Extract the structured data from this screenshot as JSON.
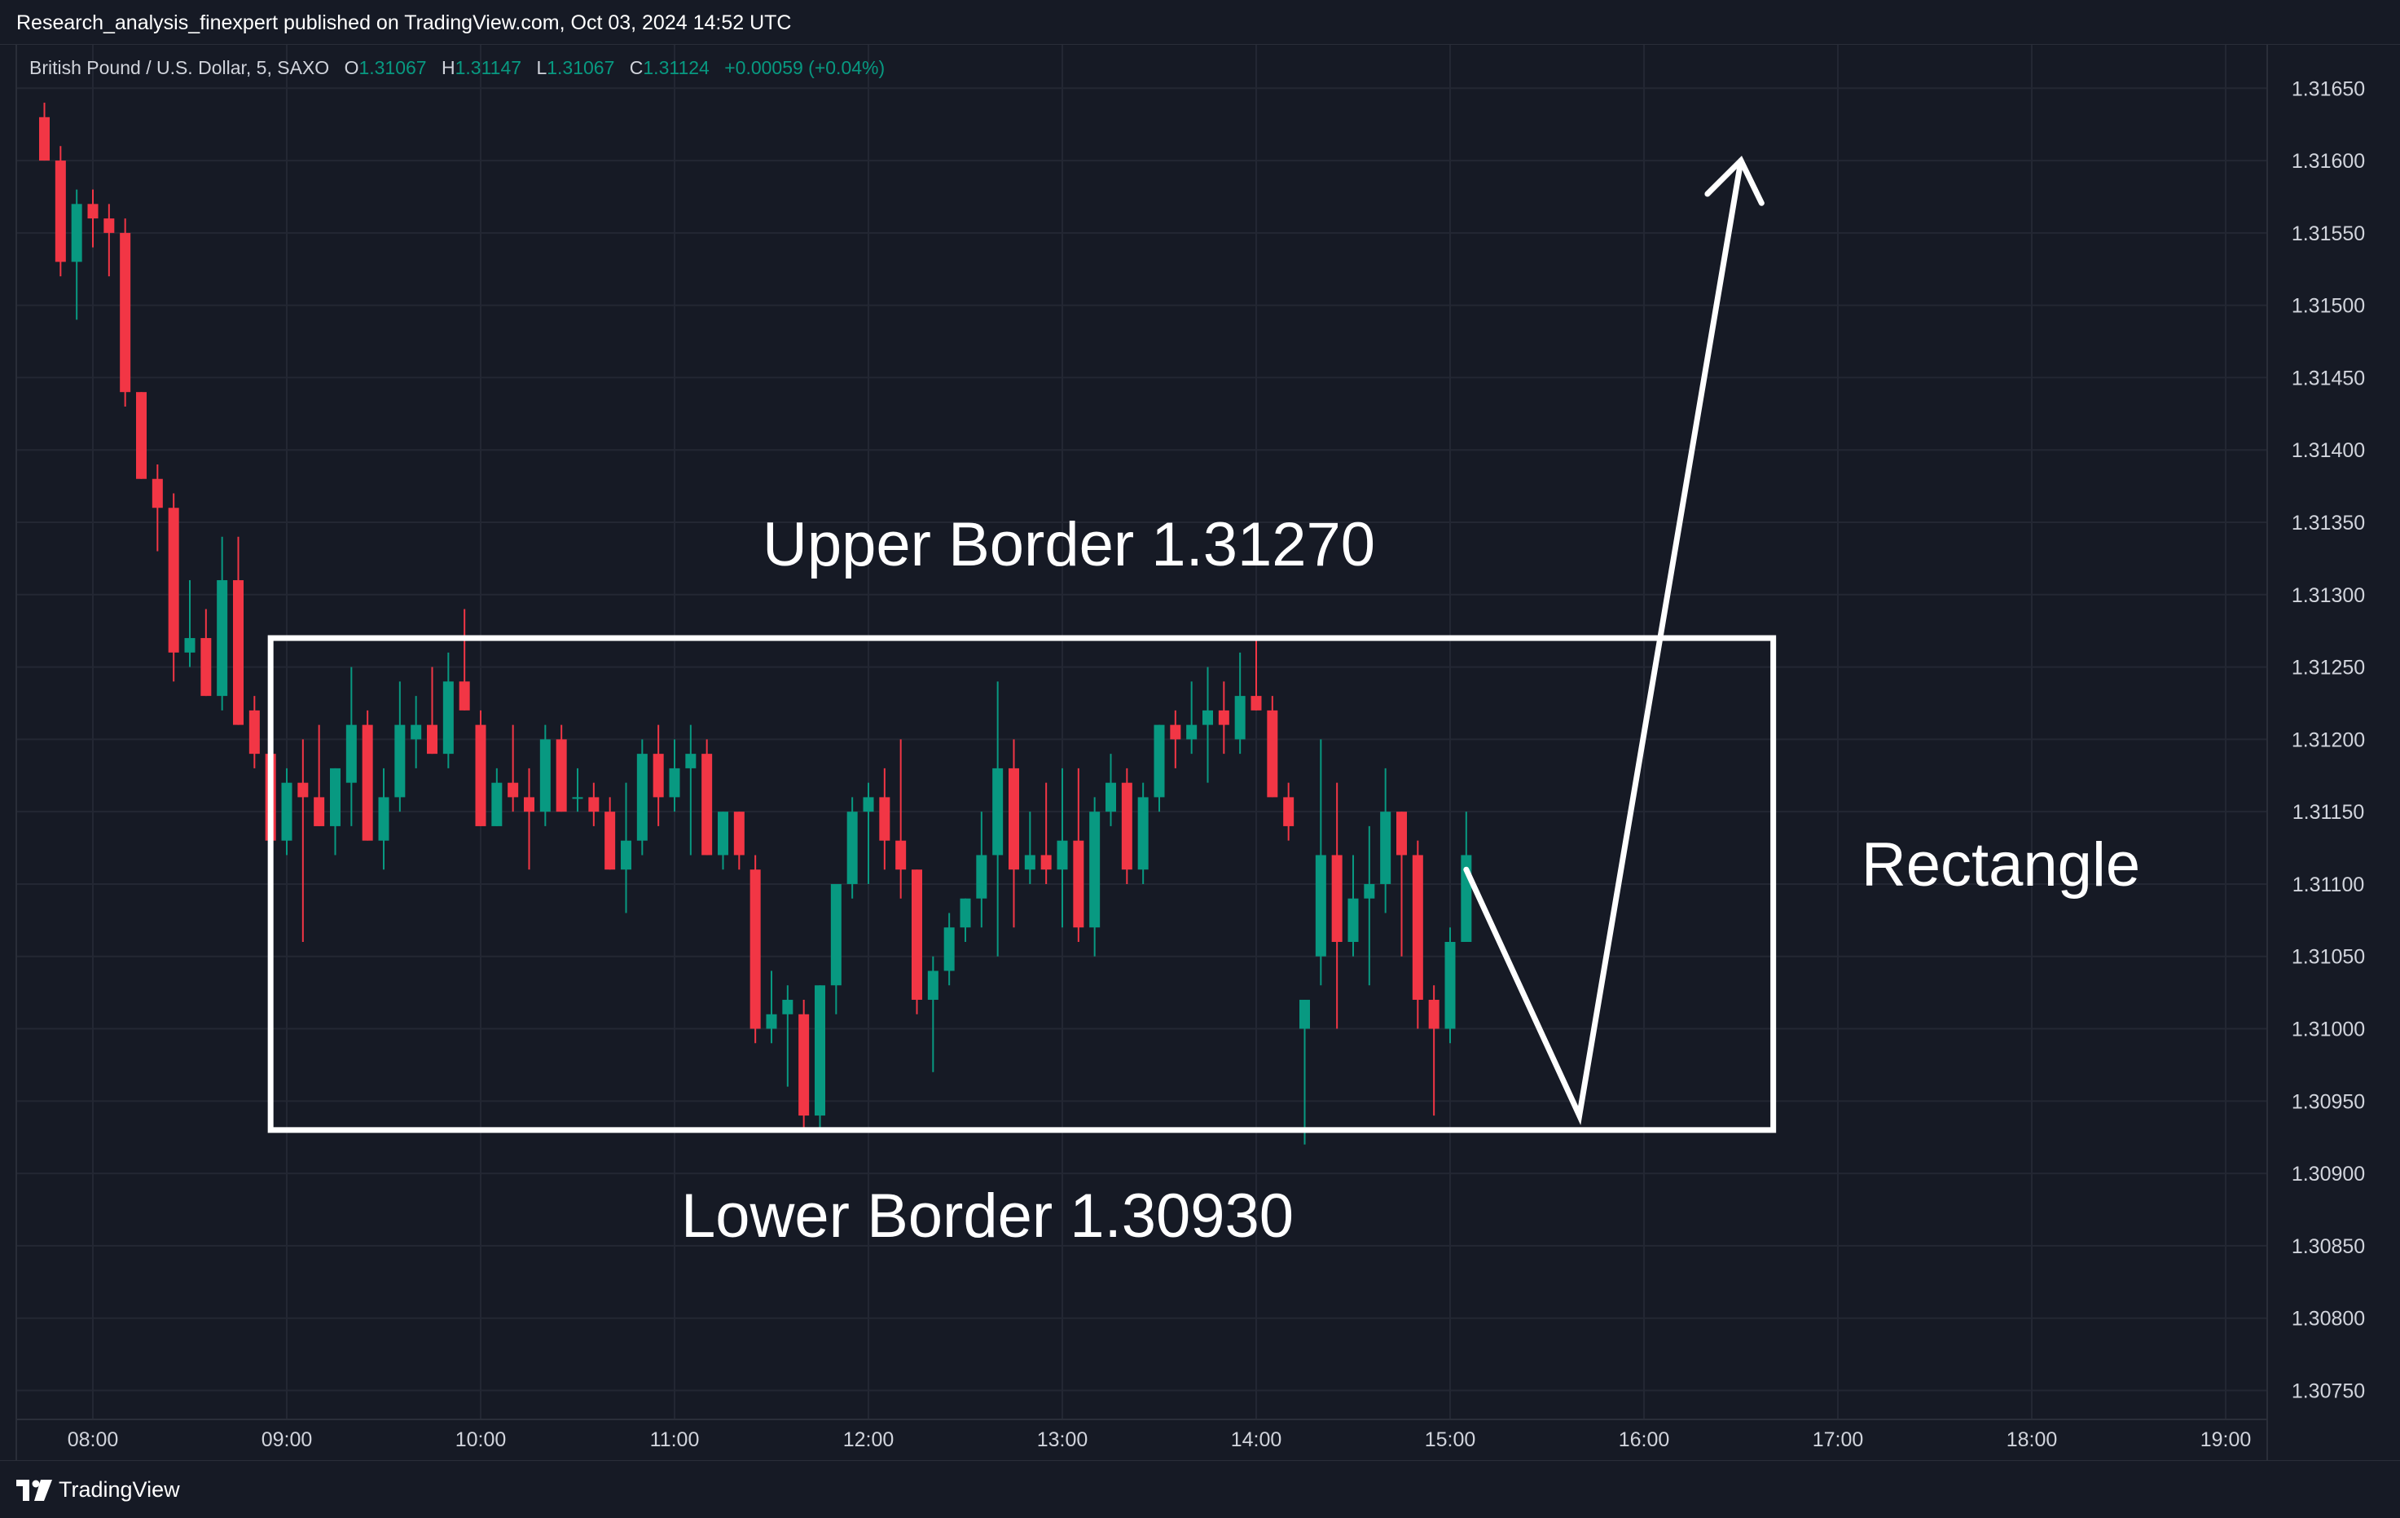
{
  "header": {
    "published_text": "Research_analysis_finexpert published on TradingView.com, Oct 03, 2024 14:52 UTC"
  },
  "legend": {
    "symbol": "British Pound / U.S. Dollar, 5, SAXO",
    "o_label": "O",
    "o_value": "1.31067",
    "h_label": "H",
    "h_value": "1.31147",
    "l_label": "L",
    "l_value": "1.31067",
    "c_label": "C",
    "c_value": "1.31124",
    "change": "+0.00059 (+0.04%)"
  },
  "footer": {
    "brand": "TradingView"
  },
  "colors": {
    "background": "#161a25",
    "grid": "#232733",
    "up": "#089981",
    "down": "#f23645",
    "axis_text": "#d1d4dc",
    "annotation": "#ffffff"
  },
  "chart_data": {
    "type": "candlestick",
    "symbol": "British Pound / U.S. Dollar",
    "interval": "5",
    "exchange": "SAXO",
    "x_axis": {
      "ticks": [
        "08:00",
        "09:00",
        "10:00",
        "11:00",
        "12:00",
        "13:00",
        "14:00",
        "15:00",
        "16:00",
        "17:00",
        "18:00",
        "19:00"
      ]
    },
    "y_axis": {
      "position": "right",
      "range": [
        1.3073,
        1.3168
      ],
      "ticks": [
        "1.30750",
        "1.30800",
        "1.30850",
        "1.30900",
        "1.30950",
        "1.31000",
        "1.31050",
        "1.31100",
        "1.31150",
        "1.31200",
        "1.31250",
        "1.31300",
        "1.31350",
        "1.31400",
        "1.31450",
        "1.31500",
        "1.31550",
        "1.31600",
        "1.31650"
      ]
    },
    "grid": true,
    "candles": [
      {
        "t": "07:45",
        "o": 1.3163,
        "h": 1.3164,
        "l": 1.316,
        "c": 1.316
      },
      {
        "t": "07:50",
        "o": 1.316,
        "h": 1.3161,
        "l": 1.3152,
        "c": 1.3153
      },
      {
        "t": "07:55",
        "o": 1.3153,
        "h": 1.3158,
        "l": 1.3149,
        "c": 1.3157
      },
      {
        "t": "08:00",
        "o": 1.3157,
        "h": 1.3158,
        "l": 1.3154,
        "c": 1.3156
      },
      {
        "t": "08:05",
        "o": 1.3156,
        "h": 1.3157,
        "l": 1.3152,
        "c": 1.3155
      },
      {
        "t": "08:10",
        "o": 1.3155,
        "h": 1.3156,
        "l": 1.3143,
        "c": 1.3144
      },
      {
        "t": "08:15",
        "o": 1.3144,
        "h": 1.3144,
        "l": 1.3138,
        "c": 1.3138
      },
      {
        "t": "08:20",
        "o": 1.3138,
        "h": 1.3139,
        "l": 1.3133,
        "c": 1.3136
      },
      {
        "t": "08:25",
        "o": 1.3136,
        "h": 1.3137,
        "l": 1.3124,
        "c": 1.3126
      },
      {
        "t": "08:30",
        "o": 1.3126,
        "h": 1.3131,
        "l": 1.3125,
        "c": 1.3127
      },
      {
        "t": "08:35",
        "o": 1.3127,
        "h": 1.3129,
        "l": 1.3123,
        "c": 1.3123
      },
      {
        "t": "08:40",
        "o": 1.3123,
        "h": 1.3134,
        "l": 1.3122,
        "c": 1.3131
      },
      {
        "t": "08:45",
        "o": 1.3131,
        "h": 1.3134,
        "l": 1.3121,
        "c": 1.3121
      },
      {
        "t": "08:50",
        "o": 1.3122,
        "h": 1.3123,
        "l": 1.3118,
        "c": 1.3119
      },
      {
        "t": "08:55",
        "o": 1.3119,
        "h": 1.3121,
        "l": 1.3111,
        "c": 1.3113
      },
      {
        "t": "09:00",
        "o": 1.3113,
        "h": 1.3118,
        "l": 1.3112,
        "c": 1.3117
      },
      {
        "t": "09:05",
        "o": 1.3117,
        "h": 1.312,
        "l": 1.3106,
        "c": 1.3116
      },
      {
        "t": "09:10",
        "o": 1.3116,
        "h": 1.3121,
        "l": 1.3114,
        "c": 1.3114
      },
      {
        "t": "09:15",
        "o": 1.3114,
        "h": 1.3118,
        "l": 1.3112,
        "c": 1.3118
      },
      {
        "t": "09:20",
        "o": 1.3117,
        "h": 1.3125,
        "l": 1.3114,
        "c": 1.3121
      },
      {
        "t": "09:25",
        "o": 1.3121,
        "h": 1.3122,
        "l": 1.3113,
        "c": 1.3113
      },
      {
        "t": "09:30",
        "o": 1.3113,
        "h": 1.3118,
        "l": 1.3111,
        "c": 1.3116
      },
      {
        "t": "09:35",
        "o": 1.3116,
        "h": 1.3124,
        "l": 1.3115,
        "c": 1.3121
      },
      {
        "t": "09:40",
        "o": 1.312,
        "h": 1.3123,
        "l": 1.3118,
        "c": 1.3121
      },
      {
        "t": "09:45",
        "o": 1.3121,
        "h": 1.3125,
        "l": 1.3119,
        "c": 1.3119
      },
      {
        "t": "09:50",
        "o": 1.3119,
        "h": 1.3126,
        "l": 1.3118,
        "c": 1.3124
      },
      {
        "t": "09:55",
        "o": 1.3124,
        "h": 1.3129,
        "l": 1.3122,
        "c": 1.3122
      },
      {
        "t": "10:00",
        "o": 1.3121,
        "h": 1.3122,
        "l": 1.3114,
        "c": 1.3114
      },
      {
        "t": "10:05",
        "o": 1.3114,
        "h": 1.3118,
        "l": 1.3114,
        "c": 1.3117
      },
      {
        "t": "10:10",
        "o": 1.3117,
        "h": 1.3121,
        "l": 1.3115,
        "c": 1.3116
      },
      {
        "t": "10:15",
        "o": 1.3116,
        "h": 1.3118,
        "l": 1.3111,
        "c": 1.3115
      },
      {
        "t": "10:20",
        "o": 1.3115,
        "h": 1.3121,
        "l": 1.3114,
        "c": 1.312
      },
      {
        "t": "10:25",
        "o": 1.312,
        "h": 1.3121,
        "l": 1.3115,
        "c": 1.3115
      },
      {
        "t": "10:30",
        "o": 1.3116,
        "h": 1.3118,
        "l": 1.3115,
        "c": 1.3116
      },
      {
        "t": "10:35",
        "o": 1.3116,
        "h": 1.3117,
        "l": 1.3114,
        "c": 1.3115
      },
      {
        "t": "10:40",
        "o": 1.3115,
        "h": 1.3116,
        "l": 1.3111,
        "c": 1.3111
      },
      {
        "t": "10:45",
        "o": 1.3111,
        "h": 1.3117,
        "l": 1.3108,
        "c": 1.3113
      },
      {
        "t": "10:50",
        "o": 1.3113,
        "h": 1.312,
        "l": 1.3112,
        "c": 1.3119
      },
      {
        "t": "10:55",
        "o": 1.3119,
        "h": 1.3121,
        "l": 1.3114,
        "c": 1.3116
      },
      {
        "t": "11:00",
        "o": 1.3116,
        "h": 1.312,
        "l": 1.3115,
        "c": 1.3118
      },
      {
        "t": "11:05",
        "o": 1.3118,
        "h": 1.3121,
        "l": 1.3112,
        "c": 1.3119
      },
      {
        "t": "11:10",
        "o": 1.3119,
        "h": 1.312,
        "l": 1.3112,
        "c": 1.3112
      },
      {
        "t": "11:15",
        "o": 1.3112,
        "h": 1.3115,
        "l": 1.3111,
        "c": 1.3115
      },
      {
        "t": "11:20",
        "o": 1.3115,
        "h": 1.3115,
        "l": 1.3111,
        "c": 1.3112
      },
      {
        "t": "11:25",
        "o": 1.3111,
        "h": 1.3112,
        "l": 1.3099,
        "c": 1.31
      },
      {
        "t": "11:30",
        "o": 1.31,
        "h": 1.3104,
        "l": 1.3099,
        "c": 1.3101
      },
      {
        "t": "11:35",
        "o": 1.3101,
        "h": 1.3103,
        "l": 1.3096,
        "c": 1.3102
      },
      {
        "t": "11:40",
        "o": 1.3101,
        "h": 1.3102,
        "l": 1.3093,
        "c": 1.3094
      },
      {
        "t": "11:45",
        "o": 1.3094,
        "h": 1.3103,
        "l": 1.3093,
        "c": 1.3103
      },
      {
        "t": "11:50",
        "o": 1.3103,
        "h": 1.311,
        "l": 1.3101,
        "c": 1.311
      },
      {
        "t": "11:55",
        "o": 1.311,
        "h": 1.3116,
        "l": 1.3109,
        "c": 1.3115
      },
      {
        "t": "12:00",
        "o": 1.3115,
        "h": 1.3117,
        "l": 1.311,
        "c": 1.3116
      },
      {
        "t": "12:05",
        "o": 1.3116,
        "h": 1.3118,
        "l": 1.3111,
        "c": 1.3113
      },
      {
        "t": "12:10",
        "o": 1.3113,
        "h": 1.312,
        "l": 1.3109,
        "c": 1.3111
      },
      {
        "t": "12:15",
        "o": 1.3111,
        "h": 1.3111,
        "l": 1.3101,
        "c": 1.3102
      },
      {
        "t": "12:20",
        "o": 1.3102,
        "h": 1.3105,
        "l": 1.3097,
        "c": 1.3104
      },
      {
        "t": "12:25",
        "o": 1.3104,
        "h": 1.3108,
        "l": 1.3103,
        "c": 1.3107
      },
      {
        "t": "12:30",
        "o": 1.3107,
        "h": 1.3109,
        "l": 1.3106,
        "c": 1.3109
      },
      {
        "t": "12:35",
        "o": 1.3109,
        "h": 1.3115,
        "l": 1.3107,
        "c": 1.3112
      },
      {
        "t": "12:40",
        "o": 1.3112,
        "h": 1.3124,
        "l": 1.3105,
        "c": 1.3118
      },
      {
        "t": "12:45",
        "o": 1.3118,
        "h": 1.312,
        "l": 1.3107,
        "c": 1.3111
      },
      {
        "t": "12:50",
        "o": 1.3111,
        "h": 1.3115,
        "l": 1.311,
        "c": 1.3112
      },
      {
        "t": "12:55",
        "o": 1.3112,
        "h": 1.3117,
        "l": 1.311,
        "c": 1.3111
      },
      {
        "t": "13:00",
        "o": 1.3111,
        "h": 1.3118,
        "l": 1.3107,
        "c": 1.3113
      },
      {
        "t": "13:05",
        "o": 1.3113,
        "h": 1.3118,
        "l": 1.3106,
        "c": 1.3107
      },
      {
        "t": "13:10",
        "o": 1.3107,
        "h": 1.3116,
        "l": 1.3105,
        "c": 1.3115
      },
      {
        "t": "13:15",
        "o": 1.3115,
        "h": 1.3119,
        "l": 1.3114,
        "c": 1.3117
      },
      {
        "t": "13:20",
        "o": 1.3117,
        "h": 1.3118,
        "l": 1.311,
        "c": 1.3111
      },
      {
        "t": "13:25",
        "o": 1.3111,
        "h": 1.3117,
        "l": 1.311,
        "c": 1.3116
      },
      {
        "t": "13:30",
        "o": 1.3116,
        "h": 1.3121,
        "l": 1.3115,
        "c": 1.3121
      },
      {
        "t": "13:35",
        "o": 1.3121,
        "h": 1.3122,
        "l": 1.3118,
        "c": 1.312
      },
      {
        "t": "13:40",
        "o": 1.312,
        "h": 1.3124,
        "l": 1.3119,
        "c": 1.3121
      },
      {
        "t": "13:45",
        "o": 1.3121,
        "h": 1.3125,
        "l": 1.3117,
        "c": 1.3122
      },
      {
        "t": "13:50",
        "o": 1.3122,
        "h": 1.3124,
        "l": 1.3119,
        "c": 1.3121
      },
      {
        "t": "13:55",
        "o": 1.312,
        "h": 1.3126,
        "l": 1.3119,
        "c": 1.3123
      },
      {
        "t": "14:00",
        "o": 1.3123,
        "h": 1.3127,
        "l": 1.3122,
        "c": 1.3122
      },
      {
        "t": "14:05",
        "o": 1.3122,
        "h": 1.3123,
        "l": 1.3116,
        "c": 1.3116
      },
      {
        "t": "14:10",
        "o": 1.3116,
        "h": 1.3117,
        "l": 1.3113,
        "c": 1.3114
      },
      {
        "t": "14:15",
        "o": 1.31,
        "h": 1.3102,
        "l": 1.3092,
        "c": 1.3102
      },
      {
        "t": "14:20",
        "o": 1.3105,
        "h": 1.312,
        "l": 1.3103,
        "c": 1.3112
      },
      {
        "t": "14:25",
        "o": 1.3112,
        "h": 1.3117,
        "l": 1.31,
        "c": 1.3106
      },
      {
        "t": "14:30",
        "o": 1.3106,
        "h": 1.3112,
        "l": 1.3105,
        "c": 1.3109
      },
      {
        "t": "14:35",
        "o": 1.3109,
        "h": 1.3114,
        "l": 1.3103,
        "c": 1.311
      },
      {
        "t": "14:40",
        "o": 1.311,
        "h": 1.3118,
        "l": 1.3108,
        "c": 1.3115
      },
      {
        "t": "14:45",
        "o": 1.3115,
        "h": 1.3115,
        "l": 1.3105,
        "c": 1.3112
      },
      {
        "t": "14:50",
        "o": 1.3112,
        "h": 1.3113,
        "l": 1.31,
        "c": 1.3102
      },
      {
        "t": "14:55",
        "o": 1.3102,
        "h": 1.3103,
        "l": 1.3094,
        "c": 1.31
      },
      {
        "t": "15:00",
        "o": 1.31,
        "h": 1.3107,
        "l": 1.3099,
        "c": 1.3106
      },
      {
        "t": "15:05",
        "o": 1.3106,
        "h": 1.3115,
        "l": 1.3106,
        "c": 1.3112
      }
    ],
    "annotations": {
      "rectangle": {
        "t_start": "08:55",
        "t_end": "16:40",
        "price_top": 1.3127,
        "price_bottom": 1.3093
      },
      "upper_label": "Upper Border 1.31270",
      "lower_label": "Lower Border 1.30930",
      "side_label": "Rectangle",
      "path": [
        {
          "t": "15:05",
          "price": 1.3111
        },
        {
          "t": "15:40",
          "price": 1.3094
        },
        {
          "t": "16:30",
          "price": 1.316
        }
      ]
    }
  }
}
